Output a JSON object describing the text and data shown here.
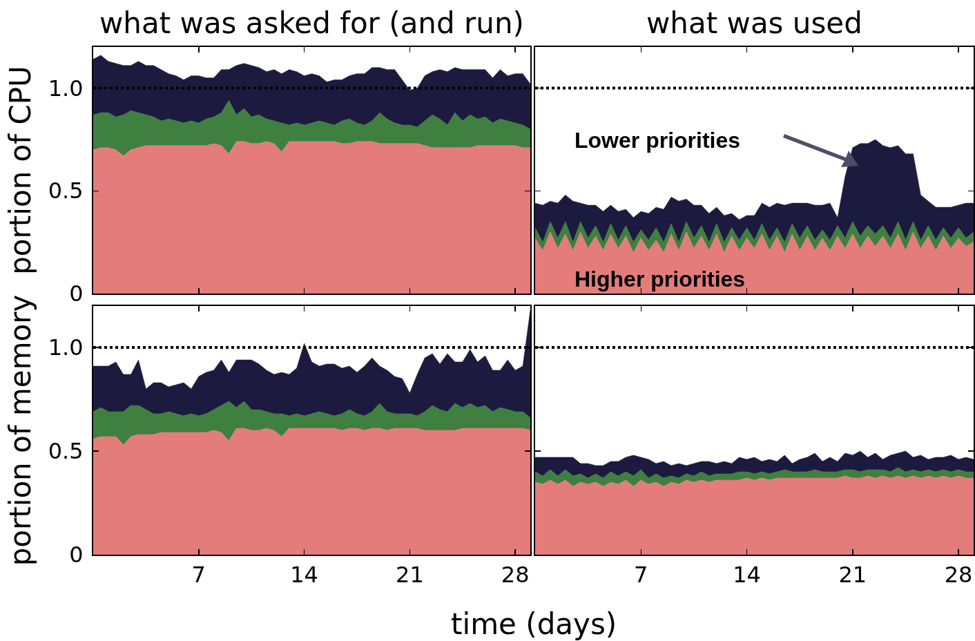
{
  "chart_data": [
    {
      "type": "area",
      "stacked": true,
      "title": "what was asked for (and run)",
      "ylabel": "portion of CPU",
      "tick_labels": "y",
      "x": [
        0,
        0.5,
        1,
        1.5,
        2,
        2.5,
        3,
        3.5,
        4,
        4.5,
        5,
        5.5,
        6,
        6.5,
        7,
        7.5,
        8,
        8.5,
        9,
        9.5,
        10,
        10.5,
        11,
        11.5,
        12,
        12.5,
        13,
        13.5,
        14,
        14.5,
        15,
        15.5,
        16,
        16.5,
        17,
        17.5,
        18,
        18.5,
        19,
        19.5,
        20,
        20.5,
        21,
        21.5,
        22,
        22.5,
        23,
        23.5,
        24,
        24.5,
        25,
        25.5,
        26,
        26.5,
        27,
        27.5,
        28,
        28.5,
        29
      ],
      "xlim": [
        0,
        29
      ],
      "xticks": [
        7,
        14,
        21,
        28
      ],
      "ylim": [
        0,
        1.2
      ],
      "yticks": [
        0,
        0.5,
        {
          "value": 1,
          "label": "1.0"
        }
      ],
      "ref_lines": [
        {
          "axis": "y",
          "value": 1,
          "line_style": "dotted",
          "color": "#000000"
        }
      ],
      "series": [
        {
          "color": "#e47c7c",
          "values": [
            0.7,
            0.71,
            0.71,
            0.7,
            0.67,
            0.7,
            0.71,
            0.72,
            0.72,
            0.72,
            0.72,
            0.72,
            0.72,
            0.72,
            0.72,
            0.72,
            0.73,
            0.72,
            0.68,
            0.74,
            0.74,
            0.73,
            0.73,
            0.74,
            0.73,
            0.69,
            0.74,
            0.74,
            0.74,
            0.74,
            0.74,
            0.74,
            0.74,
            0.73,
            0.73,
            0.74,
            0.74,
            0.74,
            0.73,
            0.73,
            0.73,
            0.73,
            0.73,
            0.73,
            0.72,
            0.71,
            0.71,
            0.71,
            0.71,
            0.71,
            0.71,
            0.72,
            0.72,
            0.72,
            0.72,
            0.72,
            0.72,
            0.71,
            0.71
          ]
        },
        {
          "color": "#3f7f3f",
          "values": [
            0.17,
            0.17,
            0.17,
            0.16,
            0.2,
            0.19,
            0.17,
            0.15,
            0.14,
            0.12,
            0.13,
            0.12,
            0.11,
            0.12,
            0.11,
            0.13,
            0.13,
            0.16,
            0.26,
            0.13,
            0.16,
            0.13,
            0.14,
            0.11,
            0.11,
            0.14,
            0.08,
            0.09,
            0.08,
            0.09,
            0.1,
            0.09,
            0.08,
            0.11,
            0.12,
            0.09,
            0.08,
            0.1,
            0.15,
            0.12,
            0.1,
            0.09,
            0.09,
            0.08,
            0.12,
            0.16,
            0.14,
            0.11,
            0.17,
            0.13,
            0.16,
            0.13,
            0.14,
            0.11,
            0.13,
            0.12,
            0.11,
            0.11,
            0.09
          ]
        },
        {
          "color": "#1c1b3f",
          "values": [
            0.27,
            0.28,
            0.25,
            0.26,
            0.24,
            0.22,
            0.25,
            0.24,
            0.25,
            0.25,
            0.22,
            0.22,
            0.21,
            0.22,
            0.23,
            0.2,
            0.19,
            0.21,
            0.15,
            0.24,
            0.22,
            0.25,
            0.23,
            0.23,
            0.25,
            0.24,
            0.27,
            0.25,
            0.24,
            0.24,
            0.22,
            0.2,
            0.22,
            0.2,
            0.21,
            0.24,
            0.25,
            0.26,
            0.22,
            0.24,
            0.26,
            0.22,
            0.17,
            0.19,
            0.22,
            0.21,
            0.24,
            0.26,
            0.22,
            0.25,
            0.22,
            0.24,
            0.23,
            0.22,
            0.24,
            0.22,
            0.24,
            0.25,
            0.22
          ]
        }
      ]
    },
    {
      "type": "area",
      "stacked": true,
      "title": "what was used",
      "tick_labels": false,
      "x": [
        0,
        0.5,
        1,
        1.5,
        2,
        2.5,
        3,
        3.5,
        4,
        4.5,
        5,
        5.5,
        6,
        6.5,
        7,
        7.5,
        8,
        8.5,
        9,
        9.5,
        10,
        10.5,
        11,
        11.5,
        12,
        12.5,
        13,
        13.5,
        14,
        14.5,
        15,
        15.5,
        16,
        16.5,
        17,
        17.5,
        18,
        18.5,
        19,
        19.5,
        20,
        20.5,
        21,
        21.5,
        22,
        22.5,
        23,
        23.5,
        24,
        24.5,
        25,
        25.5,
        26,
        26.5,
        27,
        27.5,
        28,
        28.5,
        29
      ],
      "xlim": [
        0,
        29
      ],
      "xticks": [
        7,
        14,
        21,
        28
      ],
      "ylim": [
        0,
        1.2
      ],
      "yticks": [
        0,
        0.5,
        1
      ],
      "ref_lines": [
        {
          "axis": "y",
          "value": 1,
          "line_style": "dotted",
          "color": "#000000"
        }
      ],
      "annotations": [
        "Lower priorities",
        "Higher priorities"
      ],
      "series": [
        {
          "color": "#e47c7c",
          "values": [
            0.27,
            0.21,
            0.3,
            0.22,
            0.29,
            0.21,
            0.3,
            0.22,
            0.28,
            0.21,
            0.29,
            0.22,
            0.28,
            0.2,
            0.27,
            0.21,
            0.26,
            0.2,
            0.29,
            0.21,
            0.3,
            0.22,
            0.28,
            0.21,
            0.29,
            0.2,
            0.28,
            0.21,
            0.27,
            0.22,
            0.29,
            0.21,
            0.28,
            0.2,
            0.29,
            0.21,
            0.28,
            0.21,
            0.27,
            0.21,
            0.28,
            0.22,
            0.29,
            0.22,
            0.28,
            0.23,
            0.28,
            0.22,
            0.29,
            0.21,
            0.3,
            0.22,
            0.28,
            0.21,
            0.28,
            0.22,
            0.27,
            0.23,
            0.25
          ]
        },
        {
          "color": "#3f7f3f",
          "values": [
            0.05,
            0.04,
            0.05,
            0.05,
            0.06,
            0.04,
            0.05,
            0.05,
            0.05,
            0.04,
            0.05,
            0.04,
            0.05,
            0.05,
            0.04,
            0.05,
            0.06,
            0.05,
            0.05,
            0.04,
            0.05,
            0.05,
            0.05,
            0.04,
            0.05,
            0.05,
            0.04,
            0.05,
            0.05,
            0.04,
            0.05,
            0.05,
            0.04,
            0.05,
            0.05,
            0.06,
            0.05,
            0.05,
            0.04,
            0.05,
            0.05,
            0.05,
            0.06,
            0.06,
            0.05,
            0.06,
            0.05,
            0.05,
            0.06,
            0.05,
            0.05,
            0.04,
            0.05,
            0.05,
            0.04,
            0.05,
            0.05,
            0.04,
            0.05
          ]
        },
        {
          "color": "#1c1b3f",
          "values": [
            0.12,
            0.18,
            0.1,
            0.17,
            0.13,
            0.2,
            0.09,
            0.16,
            0.1,
            0.15,
            0.09,
            0.14,
            0.08,
            0.12,
            0.09,
            0.13,
            0.1,
            0.16,
            0.13,
            0.2,
            0.11,
            0.16,
            0.1,
            0.14,
            0.08,
            0.13,
            0.07,
            0.1,
            0.06,
            0.12,
            0.1,
            0.16,
            0.12,
            0.18,
            0.1,
            0.17,
            0.11,
            0.17,
            0.12,
            0.18,
            0.04,
            0.3,
            0.36,
            0.45,
            0.4,
            0.46,
            0.39,
            0.44,
            0.37,
            0.42,
            0.33,
            0.22,
            0.12,
            0.16,
            0.1,
            0.15,
            0.11,
            0.17,
            0.14
          ]
        }
      ]
    },
    {
      "type": "area",
      "stacked": true,
      "ylabel": "portion of memory",
      "xlabel": "time (days)",
      "x": [
        0,
        0.5,
        1,
        1.5,
        2,
        2.5,
        3,
        3.5,
        4,
        4.5,
        5,
        5.5,
        6,
        6.5,
        7,
        7.5,
        8,
        8.5,
        9,
        9.5,
        10,
        10.5,
        11,
        11.5,
        12,
        12.5,
        13,
        13.5,
        14,
        14.5,
        15,
        15.5,
        16,
        16.5,
        17,
        17.5,
        18,
        18.5,
        19,
        19.5,
        20,
        20.5,
        21,
        21.5,
        22,
        22.5,
        23,
        23.5,
        24,
        24.5,
        25,
        25.5,
        26,
        26.5,
        27,
        27.5,
        28,
        28.5,
        29
      ],
      "xlim": [
        0,
        29
      ],
      "xticks": [
        7,
        14,
        21,
        28
      ],
      "ylim": [
        0,
        1.2
      ],
      "yticks": [
        0,
        0.5,
        {
          "value": 1,
          "label": "1.0"
        }
      ],
      "ref_lines": [
        {
          "axis": "y",
          "value": 1,
          "line_style": "dotted",
          "color": "#000000"
        }
      ],
      "series": [
        {
          "color": "#e47c7c",
          "values": [
            0.56,
            0.57,
            0.57,
            0.57,
            0.53,
            0.57,
            0.58,
            0.58,
            0.58,
            0.59,
            0.59,
            0.59,
            0.59,
            0.59,
            0.59,
            0.59,
            0.6,
            0.59,
            0.55,
            0.61,
            0.61,
            0.6,
            0.6,
            0.61,
            0.6,
            0.57,
            0.61,
            0.61,
            0.61,
            0.61,
            0.61,
            0.61,
            0.61,
            0.6,
            0.61,
            0.61,
            0.6,
            0.61,
            0.61,
            0.6,
            0.61,
            0.61,
            0.61,
            0.61,
            0.6,
            0.6,
            0.6,
            0.6,
            0.6,
            0.61,
            0.61,
            0.61,
            0.61,
            0.61,
            0.61,
            0.61,
            0.61,
            0.61,
            0.6
          ]
        },
        {
          "color": "#3f7f3f",
          "values": [
            0.13,
            0.14,
            0.12,
            0.12,
            0.16,
            0.15,
            0.14,
            0.12,
            0.1,
            0.09,
            0.1,
            0.09,
            0.08,
            0.09,
            0.08,
            0.09,
            0.1,
            0.13,
            0.19,
            0.1,
            0.13,
            0.1,
            0.1,
            0.08,
            0.08,
            0.11,
            0.06,
            0.07,
            0.06,
            0.07,
            0.08,
            0.07,
            0.06,
            0.08,
            0.09,
            0.07,
            0.07,
            0.08,
            0.12,
            0.09,
            0.07,
            0.07,
            0.07,
            0.06,
            0.09,
            0.12,
            0.1,
            0.09,
            0.13,
            0.1,
            0.12,
            0.1,
            0.11,
            0.08,
            0.1,
            0.09,
            0.08,
            0.08,
            0.06
          ]
        },
        {
          "color": "#1c1b3f",
          "values": [
            0.22,
            0.2,
            0.22,
            0.24,
            0.18,
            0.15,
            0.22,
            0.1,
            0.15,
            0.15,
            0.12,
            0.14,
            0.16,
            0.12,
            0.19,
            0.2,
            0.19,
            0.22,
            0.14,
            0.23,
            0.2,
            0.24,
            0.22,
            0.2,
            0.19,
            0.2,
            0.2,
            0.22,
            0.35,
            0.25,
            0.22,
            0.24,
            0.25,
            0.22,
            0.21,
            0.2,
            0.24,
            0.26,
            0.18,
            0.2,
            0.18,
            0.17,
            0.1,
            0.2,
            0.26,
            0.25,
            0.22,
            0.28,
            0.2,
            0.22,
            0.26,
            0.22,
            0.24,
            0.2,
            0.18,
            0.24,
            0.2,
            0.22,
            0.52
          ]
        }
      ]
    },
    {
      "type": "area",
      "stacked": true,
      "tick_labels": "x",
      "x": [
        0,
        0.5,
        1,
        1.5,
        2,
        2.5,
        3,
        3.5,
        4,
        4.5,
        5,
        5.5,
        6,
        6.5,
        7,
        7.5,
        8,
        8.5,
        9,
        9.5,
        10,
        10.5,
        11,
        11.5,
        12,
        12.5,
        13,
        13.5,
        14,
        14.5,
        15,
        15.5,
        16,
        16.5,
        17,
        17.5,
        18,
        18.5,
        19,
        19.5,
        20,
        20.5,
        21,
        21.5,
        22,
        22.5,
        23,
        23.5,
        24,
        24.5,
        25,
        25.5,
        26,
        26.5,
        27,
        27.5,
        28,
        28.5,
        29
      ],
      "xlim": [
        0,
        29
      ],
      "xticks": [
        7,
        14,
        21,
        28
      ],
      "ylim": [
        0,
        1.2
      ],
      "yticks": [
        0,
        0.5,
        1
      ],
      "ref_lines": [
        {
          "axis": "y",
          "value": 1,
          "line_style": "dotted",
          "color": "#000000"
        }
      ],
      "series": [
        {
          "color": "#e47c7c",
          "values": [
            0.35,
            0.34,
            0.36,
            0.34,
            0.36,
            0.33,
            0.35,
            0.34,
            0.35,
            0.33,
            0.35,
            0.34,
            0.36,
            0.33,
            0.36,
            0.34,
            0.35,
            0.33,
            0.35,
            0.34,
            0.36,
            0.35,
            0.36,
            0.35,
            0.36,
            0.36,
            0.36,
            0.36,
            0.37,
            0.36,
            0.37,
            0.36,
            0.37,
            0.37,
            0.37,
            0.37,
            0.37,
            0.37,
            0.37,
            0.37,
            0.37,
            0.38,
            0.37,
            0.37,
            0.38,
            0.37,
            0.38,
            0.37,
            0.38,
            0.37,
            0.38,
            0.37,
            0.38,
            0.37,
            0.38,
            0.37,
            0.38,
            0.37,
            0.37
          ]
        },
        {
          "color": "#3f7f3f",
          "values": [
            0.05,
            0.04,
            0.05,
            0.04,
            0.05,
            0.05,
            0.04,
            0.03,
            0.04,
            0.04,
            0.05,
            0.04,
            0.04,
            0.05,
            0.05,
            0.03,
            0.04,
            0.04,
            0.03,
            0.03,
            0.03,
            0.03,
            0.04,
            0.03,
            0.03,
            0.03,
            0.03,
            0.04,
            0.03,
            0.03,
            0.03,
            0.03,
            0.03,
            0.04,
            0.03,
            0.03,
            0.03,
            0.04,
            0.03,
            0.03,
            0.03,
            0.03,
            0.04,
            0.03,
            0.03,
            0.04,
            0.03,
            0.03,
            0.04,
            0.03,
            0.03,
            0.03,
            0.03,
            0.03,
            0.03,
            0.03,
            0.03,
            0.03,
            0.03
          ]
        },
        {
          "color": "#1c1b3f",
          "values": [
            0.07,
            0.09,
            0.06,
            0.09,
            0.06,
            0.09,
            0.05,
            0.07,
            0.04,
            0.06,
            0.05,
            0.07,
            0.07,
            0.1,
            0.06,
            0.09,
            0.05,
            0.08,
            0.05,
            0.07,
            0.04,
            0.06,
            0.05,
            0.07,
            0.05,
            0.06,
            0.05,
            0.07,
            0.06,
            0.08,
            0.05,
            0.07,
            0.05,
            0.07,
            0.04,
            0.06,
            0.07,
            0.08,
            0.05,
            0.07,
            0.05,
            0.08,
            0.07,
            0.1,
            0.06,
            0.08,
            0.05,
            0.08,
            0.07,
            0.1,
            0.06,
            0.08,
            0.05,
            0.07,
            0.06,
            0.08,
            0.05,
            0.07,
            0.06
          ]
        }
      ]
    }
  ]
}
